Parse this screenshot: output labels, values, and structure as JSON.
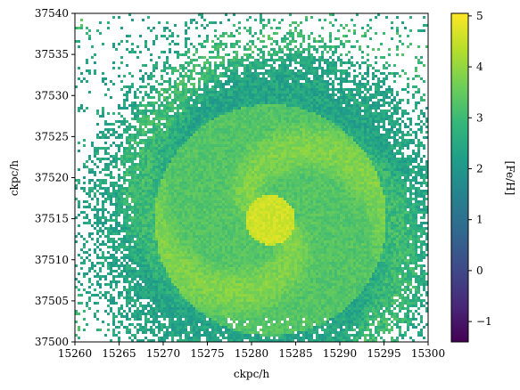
{
  "chart_data": {
    "type": "heatmap",
    "title": "",
    "xlabel": "ckpc/h",
    "ylabel": "ckpc/h",
    "xlim": [
      15260,
      15300
    ],
    "ylim": [
      37500,
      37540
    ],
    "xticks": [
      15260,
      15265,
      15270,
      15275,
      15280,
      15285,
      15290,
      15295,
      15300
    ],
    "yticks": [
      37500,
      37505,
      37510,
      37515,
      37520,
      37525,
      37530,
      37535,
      37540
    ],
    "colorbar": {
      "label": "[Fe/H]",
      "colormap": "viridis",
      "range": [
        -1.4,
        5.05
      ],
      "ticks": [
        -1,
        0,
        1,
        2,
        3,
        4,
        5
      ]
    },
    "structure": {
      "description_values": true,
      "center": [
        15282,
        37515
      ],
      "core_value": 4.6,
      "spiral_value": 3.9,
      "disk_value": 3.3,
      "halo_value": 2.4,
      "background": "white (empty pixels)"
    },
    "colors": {
      "viridis": [
        "#440154",
        "#482878",
        "#3e4a89",
        "#31688e",
        "#26828e",
        "#1f9e89",
        "#35b779",
        "#6ece58",
        "#b5de2b",
        "#fde725"
      ]
    }
  }
}
